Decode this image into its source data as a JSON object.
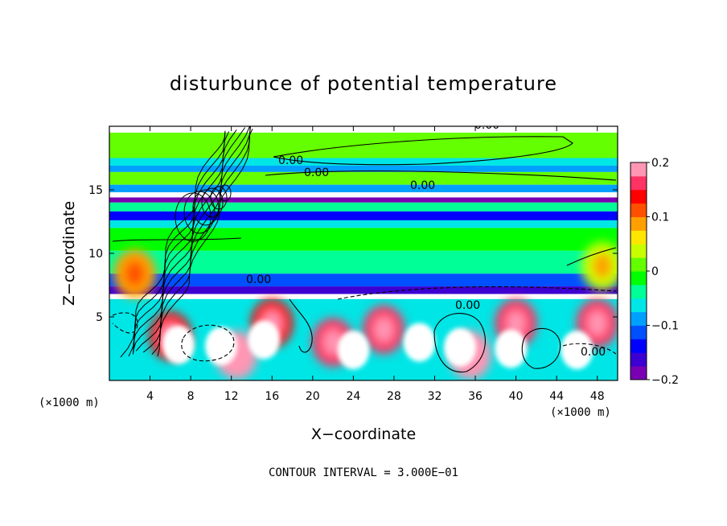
{
  "chart_data": {
    "type": "heatmap",
    "title": "disturbunce of potential temperature",
    "xlabel": "X−coordinate",
    "ylabel": "Z−coordinate",
    "x_unit": "(×1000 m)",
    "x_unit_right": "(×1000 m)",
    "xlim": [
      0,
      50
    ],
    "ylim": [
      0,
      20
    ],
    "x_ticks": [
      4,
      8,
      12,
      16,
      20,
      24,
      28,
      32,
      36,
      40,
      44,
      48
    ],
    "y_ticks": [
      5,
      10,
      15
    ],
    "contour_note": "CONTOUR INTERVAL = 3.000E−01",
    "contour_labels": [
      "0.00",
      "0.00",
      "0.00",
      "0.00",
      "0.00",
      "0.00",
      "0.00"
    ],
    "colorbar": {
      "min": -0.2,
      "max": 0.2,
      "ticks": [
        "0.2",
        "0.1",
        "0",
        "−0.1",
        "−0.2"
      ],
      "tick_values": [
        0.2,
        0.1,
        0,
        -0.1,
        -0.2
      ],
      "colors": [
        "#7a00b4",
        "#3c00d2",
        "#0000ff",
        "#0050ff",
        "#00a0ff",
        "#00e6e6",
        "#00ff96",
        "#00ff00",
        "#64ff00",
        "#c8ff00",
        "#ffe600",
        "#ffa000",
        "#ff5000",
        "#ff0000",
        "#ff3264",
        "#ff96b4"
      ]
    },
    "horizontal_bands": [
      {
        "z_top": 20.0,
        "z_bot": 19.5,
        "value": 0.3
      },
      {
        "z_top": 19.5,
        "z_bot": 17.5,
        "value": 0.005
      },
      {
        "z_top": 17.5,
        "z_bot": 16.9,
        "value": -0.06
      },
      {
        "z_top": 16.9,
        "z_bot": 16.4,
        "value": -0.09
      },
      {
        "z_top": 16.4,
        "z_bot": 15.4,
        "value": 0.0
      },
      {
        "z_top": 15.4,
        "z_bot": 14.8,
        "value": -0.09
      },
      {
        "z_top": 14.8,
        "z_bot": 14.4,
        "value": 0.3
      },
      {
        "z_top": 14.4,
        "z_bot": 14.0,
        "value": -0.19
      },
      {
        "z_top": 14.0,
        "z_bot": 13.3,
        "value": -0.05
      },
      {
        "z_top": 13.3,
        "z_bot": 12.6,
        "value": -0.15
      },
      {
        "z_top": 12.6,
        "z_bot": 12.0,
        "value": -0.07
      },
      {
        "z_top": 12.0,
        "z_bot": 10.2,
        "value": -0.005
      },
      {
        "z_top": 10.2,
        "z_bot": 8.4,
        "value": -0.05
      },
      {
        "z_top": 8.4,
        "z_bot": 7.4,
        "value": -0.11
      },
      {
        "z_top": 7.4,
        "z_bot": 6.8,
        "value": -0.17
      },
      {
        "z_top": 6.8,
        "z_bot": 6.4,
        "value": 0.3
      },
      {
        "z_top": 6.4,
        "z_bot": 0.0,
        "value": -0.07
      }
    ],
    "warm_anomalies": [
      {
        "x": 2.5,
        "z": 8.4,
        "value": 0.08
      },
      {
        "x": 48.5,
        "z": 9.0,
        "value": 0.04
      },
      {
        "x": 48.0,
        "z": 4.5,
        "value": 0.16
      },
      {
        "x": 12.5,
        "z": 2.0,
        "value": 0.18
      },
      {
        "x": 22.0,
        "z": 3.0,
        "value": 0.16
      },
      {
        "x": 27.0,
        "z": 4.0,
        "value": 0.16
      },
      {
        "x": 35.5,
        "z": 2.0,
        "value": 0.18
      },
      {
        "x": 40.0,
        "z": 4.5,
        "value": 0.16
      },
      {
        "x": 6.0,
        "z": 3.5,
        "value": 0.14
      },
      {
        "x": 16.0,
        "z": 4.5,
        "value": 0.15
      }
    ],
    "saturated_cells": [
      {
        "x": 6.8,
        "z": 2.8,
        "value": 0.3
      },
      {
        "x": 11.0,
        "z": 2.7,
        "value": 0.3
      },
      {
        "x": 15.2,
        "z": 3.2,
        "value": 0.3
      },
      {
        "x": 30.5,
        "z": 3.0,
        "value": 0.3
      },
      {
        "x": 34.5,
        "z": 2.6,
        "value": 0.3
      },
      {
        "x": 39.5,
        "z": 2.5,
        "value": 0.3
      },
      {
        "x": 46.0,
        "z": 2.4,
        "value": 0.3
      },
      {
        "x": 24.0,
        "z": 2.4,
        "value": 0.3
      }
    ]
  }
}
